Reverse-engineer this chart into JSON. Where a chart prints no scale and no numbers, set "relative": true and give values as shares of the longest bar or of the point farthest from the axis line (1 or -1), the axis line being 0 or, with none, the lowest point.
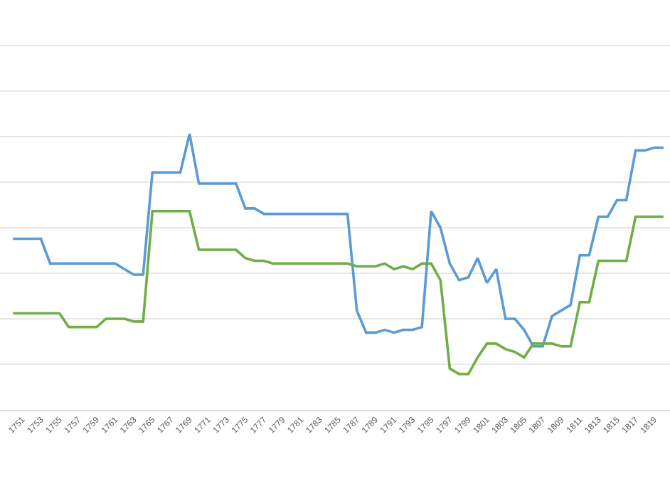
{
  "chart_data": {
    "type": "line",
    "relative": true,
    "grid": "y",
    "marker": "none",
    "line_style": "solid",
    "categories": [
      null,
      "1751",
      null,
      "1753",
      null,
      "1755",
      null,
      "1757",
      null,
      "1759",
      null,
      "1761",
      null,
      "1763",
      null,
      "1765",
      null,
      "1767",
      null,
      "1769",
      null,
      "1771",
      null,
      "1773",
      null,
      "1775",
      null,
      "1777",
      null,
      "1779",
      null,
      "1781",
      null,
      "1783",
      null,
      "1785",
      null,
      "1787",
      null,
      "1789",
      null,
      "1791",
      null,
      "1793",
      null,
      "1795",
      null,
      "1797",
      null,
      "1799",
      null,
      "1801",
      null,
      "1803",
      null,
      "1805",
      null,
      "1807",
      null,
      "1809",
      null,
      "1811",
      null,
      "1813",
      null,
      "1815",
      null,
      "1817",
      null,
      "1819",
      null
    ],
    "series": [
      {
        "color": "#5b9bd5",
        "values": [
          0.62,
          0.62,
          0.62,
          0.62,
          0.53,
          0.53,
          0.53,
          0.53,
          0.53,
          0.53,
          0.53,
          0.53,
          0.51,
          0.49,
          0.49,
          0.86,
          0.86,
          0.86,
          0.86,
          1.0,
          0.82,
          0.82,
          0.82,
          0.82,
          0.82,
          0.73,
          0.73,
          0.71,
          0.71,
          0.71,
          0.71,
          0.71,
          0.71,
          0.71,
          0.71,
          0.71,
          0.71,
          0.36,
          0.28,
          0.28,
          0.29,
          0.28,
          0.29,
          0.29,
          0.3,
          0.72,
          0.66,
          0.53,
          0.47,
          0.48,
          0.55,
          0.46,
          0.51,
          0.33,
          0.33,
          0.29,
          0.23,
          0.23,
          0.34,
          0.36,
          0.38,
          0.56,
          0.56,
          0.7,
          0.7,
          0.76,
          0.76,
          0.94,
          0.94,
          0.95,
          0.95
        ]
      },
      {
        "color": "#70ad47",
        "values": [
          0.35,
          0.35,
          0.35,
          0.35,
          0.35,
          0.35,
          0.3,
          0.3,
          0.3,
          0.3,
          0.33,
          0.33,
          0.33,
          0.32,
          0.32,
          0.72,
          0.72,
          0.72,
          0.72,
          0.72,
          0.58,
          0.58,
          0.58,
          0.58,
          0.58,
          0.55,
          0.54,
          0.54,
          0.53,
          0.53,
          0.53,
          0.53,
          0.53,
          0.53,
          0.53,
          0.53,
          0.53,
          0.52,
          0.52,
          0.52,
          0.53,
          0.51,
          0.52,
          0.51,
          0.53,
          0.53,
          0.47,
          0.15,
          0.13,
          0.13,
          0.19,
          0.24,
          0.24,
          0.22,
          0.21,
          0.19,
          0.24,
          0.24,
          0.24,
          0.23,
          0.23,
          0.39,
          0.39,
          0.54,
          0.54,
          0.54,
          0.54,
          0.7,
          0.7,
          0.7,
          0.7
        ]
      }
    ]
  }
}
